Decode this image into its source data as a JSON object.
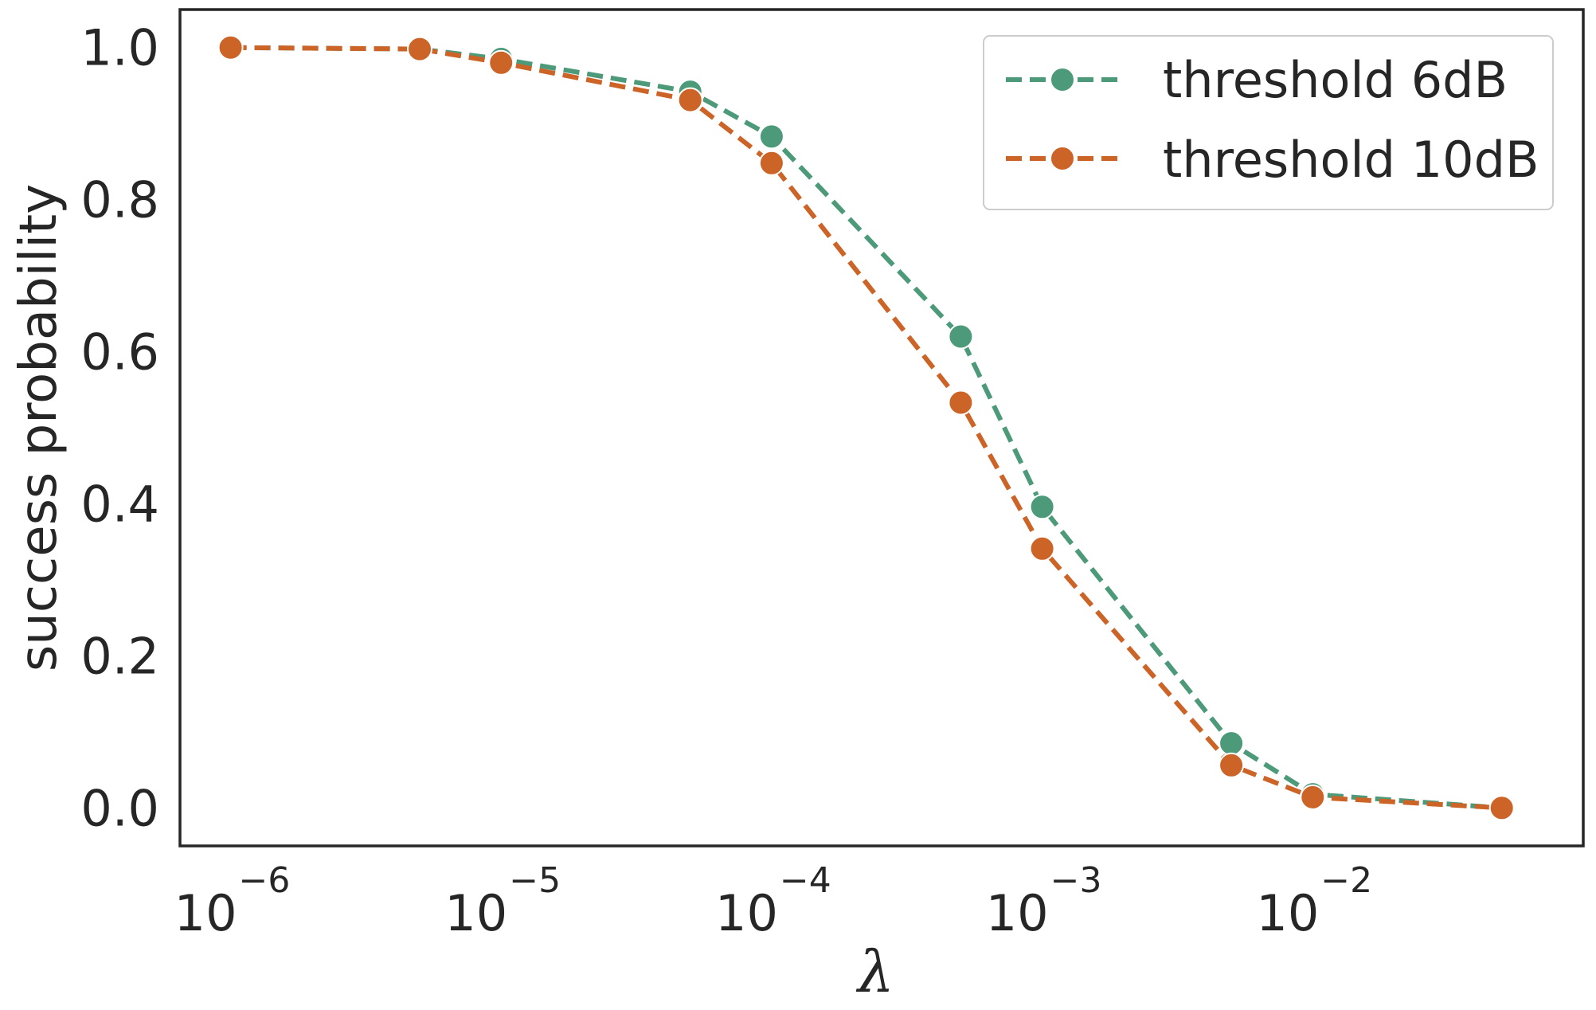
{
  "chart_data": {
    "type": "line",
    "title": "",
    "xlabel": "λ",
    "ylabel": "success probability",
    "xscale": "log",
    "xlim": [
      6.5e-07,
      0.1
    ],
    "ylim": [
      -0.05,
      1.05
    ],
    "grid": false,
    "legend_position": "top-right",
    "x_ticks": [
      {
        "base": "10",
        "exp": "−6",
        "value": 1e-06
      },
      {
        "base": "10",
        "exp": "−5",
        "value": 1e-05
      },
      {
        "base": "10",
        "exp": "−4",
        "value": 0.0001
      },
      {
        "base": "10",
        "exp": "−3",
        "value": 0.001
      },
      {
        "base": "10",
        "exp": "−2",
        "value": 0.01
      }
    ],
    "y_ticks": [
      {
        "label": "0.0",
        "value": 0.0
      },
      {
        "label": "0.2",
        "value": 0.2
      },
      {
        "label": "0.4",
        "value": 0.4
      },
      {
        "label": "0.6",
        "value": 0.6
      },
      {
        "label": "0.8",
        "value": 0.8
      },
      {
        "label": "1.0",
        "value": 1.0
      }
    ],
    "series": [
      {
        "name": "threshold 6dB",
        "color": "#4c9a7a",
        "x": [
          1e-06,
          5e-06,
          1e-05,
          5e-05,
          0.0001,
          0.0005,
          0.001,
          0.005,
          0.01,
          0.05
        ],
        "values": [
          1.0,
          0.998,
          0.985,
          0.942,
          0.883,
          0.62,
          0.396,
          0.085,
          0.018,
          0.0
        ]
      },
      {
        "name": "threshold 10dB",
        "color": "#cc6428",
        "x": [
          1e-06,
          5e-06,
          1e-05,
          5e-05,
          0.0001,
          0.0005,
          0.001,
          0.005,
          0.01,
          0.05
        ],
        "values": [
          1.0,
          0.998,
          0.98,
          0.931,
          0.848,
          0.533,
          0.341,
          0.056,
          0.014,
          0.0
        ]
      }
    ]
  }
}
